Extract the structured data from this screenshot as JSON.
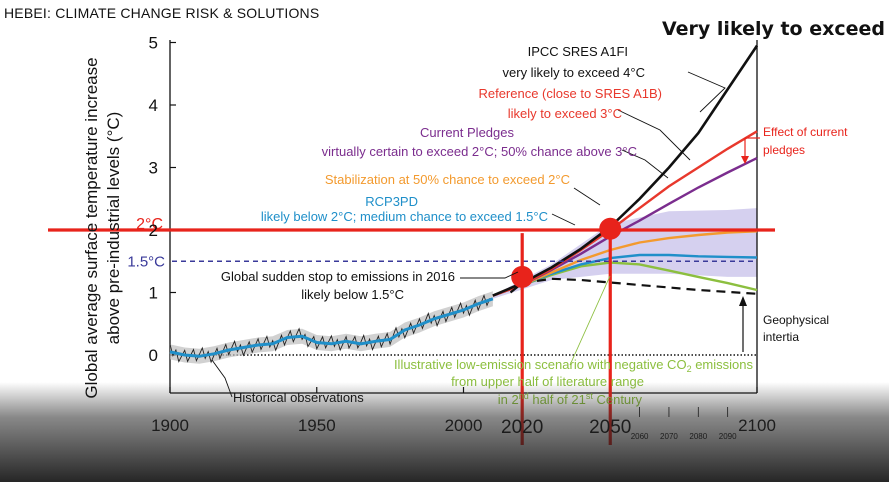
{
  "slide": {
    "title": "HEBEI: CLIMATE CHANGE RISK & SOLUTIONS",
    "headline": "Very likely to exceed"
  },
  "colors": {
    "black": "#111111",
    "reference": "#e8382c",
    "pledges": "#7b2d8e",
    "stabilization": "#f39a2e",
    "rcp3pd": "#1f8fc9",
    "lowemission": "#8cbf3f",
    "highlight": "#e8231b",
    "band": "#c7c0ea",
    "historical_band": "#bdbdbd",
    "dashed_15": "#3a3a9a"
  },
  "chart_data": {
    "type": "line",
    "xlabel": "",
    "ylabel": "Global average surface temperature increase above pre-industrial levels (°C)",
    "xlim": [
      1900,
      2100
    ],
    "ylim": [
      -0.3,
      5
    ],
    "x_ticks": [
      "1900",
      "1950",
      "2000",
      "2100"
    ],
    "y_ticks": [
      "0",
      "1",
      "2",
      "3",
      "4",
      "5"
    ],
    "highlight_years": [
      "2020",
      "2050"
    ],
    "minor_year_labels": [
      "2060",
      "2070",
      "2080",
      "2090"
    ],
    "reference_lines": [
      {
        "label": "2°C",
        "value": 2.0
      },
      {
        "label": "1.5°C",
        "value": 1.5
      }
    ],
    "highlight_points": [
      {
        "x": 2020,
        "y": 1.25
      },
      {
        "x": 2050,
        "y": 2.02
      }
    ],
    "series": [
      {
        "name": "IPCC SRES A1FI",
        "key": "black",
        "x": [
          2010,
          2020,
          2030,
          2040,
          2050,
          2060,
          2070,
          2080,
          2090,
          2100
        ],
        "y": [
          0.95,
          1.15,
          1.4,
          1.7,
          2.05,
          2.5,
          3.0,
          3.55,
          4.25,
          4.95
        ]
      },
      {
        "name": "Reference (close to SRES A1B)",
        "key": "reference",
        "x": [
          2010,
          2020,
          2030,
          2040,
          2050,
          2060,
          2070,
          2080,
          2090,
          2100
        ],
        "y": [
          0.95,
          1.12,
          1.38,
          1.68,
          2.0,
          2.35,
          2.7,
          3.0,
          3.3,
          3.58
        ]
      },
      {
        "name": "Current Pledges",
        "key": "pledges",
        "x": [
          2010,
          2020,
          2030,
          2040,
          2050,
          2060,
          2070,
          2080,
          2090,
          2100
        ],
        "y": [
          0.95,
          1.12,
          1.36,
          1.62,
          1.9,
          2.15,
          2.42,
          2.68,
          2.92,
          3.15
        ]
      },
      {
        "name": "Stabilization at 50% chance to exceed 2°C",
        "key": "stabilization",
        "x": [
          2010,
          2020,
          2030,
          2040,
          2050,
          2060,
          2070,
          2080,
          2090,
          2100
        ],
        "y": [
          0.95,
          1.12,
          1.32,
          1.52,
          1.68,
          1.8,
          1.87,
          1.92,
          1.96,
          1.98
        ]
      },
      {
        "name": "RCP3PD",
        "key": "rcp3pd",
        "x": [
          2010,
          2020,
          2030,
          2040,
          2050,
          2060,
          2070,
          2080,
          2090,
          2100
        ],
        "y": [
          0.95,
          1.12,
          1.3,
          1.45,
          1.55,
          1.6,
          1.6,
          1.58,
          1.57,
          1.56
        ]
      },
      {
        "name": "Illustrative low-emission scenario",
        "key": "lowemission",
        "x": [
          2010,
          2020,
          2030,
          2040,
          2050,
          2060,
          2070,
          2080,
          2090,
          2100
        ],
        "y": [
          0.95,
          1.12,
          1.28,
          1.42,
          1.48,
          1.45,
          1.35,
          1.25,
          1.15,
          1.04
        ]
      },
      {
        "name": "Global sudden stop to emissions in 2016",
        "key": "suddenstop",
        "x": [
          2016,
          2020,
          2030,
          2040,
          2050,
          2060,
          2070,
          2080,
          2090,
          2100
        ],
        "y": [
          1.0,
          1.15,
          1.22,
          1.2,
          1.16,
          1.12,
          1.08,
          1.04,
          1.01,
          0.98
        ]
      }
    ],
    "historical": {
      "name": "Historical observations",
      "x": [
        1900,
        1905,
        1910,
        1915,
        1920,
        1925,
        1930,
        1935,
        1940,
        1945,
        1950,
        1955,
        1960,
        1965,
        1970,
        1975,
        1980,
        1985,
        1990,
        1995,
        2000,
        2005,
        2010
      ],
      "y": [
        0.05,
        0.0,
        -0.02,
        0.02,
        0.08,
        0.12,
        0.16,
        0.18,
        0.28,
        0.3,
        0.2,
        0.18,
        0.22,
        0.18,
        0.22,
        0.25,
        0.4,
        0.48,
        0.58,
        0.65,
        0.72,
        0.82,
        0.9
      ]
    },
    "annotations": {
      "a1fi_title": "IPCC SRES A1FI",
      "a1fi_sub": "very likely to exceed 4°C",
      "ref_title": "Reference (close to SRES A1B)",
      "ref_sub": "likely to exceed 3°C",
      "pledges_title": "Current Pledges",
      "pledges_sub": "virtually certain to exceed 2°C; 50% chance above 3°C",
      "stab": "Stabilization at 50% chance to exceed 2°C",
      "rcp_title": "RCP3PD",
      "rcp_sub": "likely below 2°C; medium chance to exceed 1.5°C",
      "stop_title": "Global sudden stop to emissions in 2016",
      "stop_sub": "likely below 1.5°C",
      "effect": "Effect of current",
      "effect2": "pledges",
      "geo": "Geophysical",
      "geo2": "intertia",
      "low1": "Illustrative low-emission scenario with negative CO",
      "low1b": "2",
      "low1c": " emissions",
      "low2": "from upper half of literature range",
      "low3a": "in 2",
      "low3b": "nd",
      "low3c": " half of 21",
      "low3d": "st",
      "low3e": " Century",
      "hist": "Historical observations"
    }
  }
}
